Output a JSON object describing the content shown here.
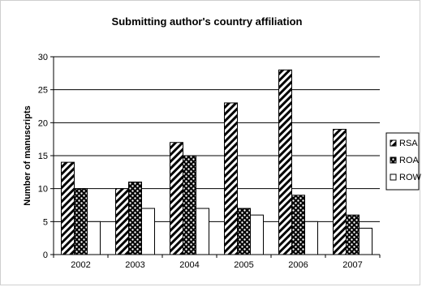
{
  "chart_data": {
    "type": "bar",
    "title": "Submitting author's country affiliation",
    "xlabel": "",
    "ylabel": "Number of manuscripts",
    "categories": [
      "2002",
      "2003",
      "2004",
      "2005",
      "2006",
      "2007"
    ],
    "series": [
      {
        "name": "RSA",
        "values": [
          14,
          10,
          17,
          23,
          28,
          19
        ],
        "pattern": "diagonal-stripes"
      },
      {
        "name": "ROA",
        "values": [
          10,
          11,
          15,
          7,
          9,
          6
        ],
        "pattern": "dots"
      },
      {
        "name": "ROW",
        "values": [
          5,
          7,
          7,
          6,
          5,
          4
        ],
        "pattern": "white"
      }
    ],
    "ylim": [
      0,
      30
    ],
    "yticks": [
      0,
      5,
      10,
      15,
      20,
      25,
      30
    ],
    "grid": true,
    "legend_position": "right"
  }
}
